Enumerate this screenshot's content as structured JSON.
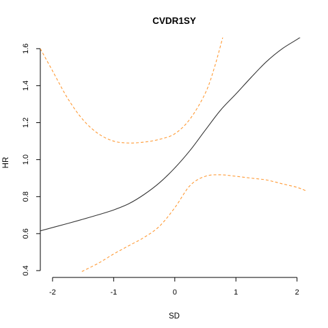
{
  "chart_data": {
    "type": "line",
    "title": "CVDR1SY",
    "xlabel": "SD",
    "ylabel": "HR",
    "xlim": [
      -2.2,
      2.16
    ],
    "ylim": [
      0.4,
      1.66
    ],
    "x_ticks": [
      -2,
      -1,
      0,
      1,
      2
    ],
    "y_ticks": [
      0.4,
      0.6,
      0.8,
      1.0,
      1.2,
      1.4,
      1.6
    ],
    "x_tick_labels": [
      "-2",
      "-1",
      "0",
      "1",
      "2"
    ],
    "y_tick_labels": [
      "0.4",
      "0.6",
      "0.8",
      "1.0",
      "1.2",
      "1.4",
      "1.6"
    ],
    "grid": false,
    "series": [
      {
        "style": "solid",
        "color": "#333333",
        "x": [
          -2.2,
          -1.75,
          -1.5,
          -1.25,
          -1.0,
          -0.75,
          -0.5,
          -0.25,
          0.0,
          0.25,
          0.5,
          0.75,
          1.0,
          1.25,
          1.5,
          1.75,
          2.0,
          2.16
        ],
        "y": [
          0.615,
          0.655,
          0.678,
          0.702,
          0.728,
          0.762,
          0.812,
          0.875,
          0.955,
          1.05,
          1.16,
          1.268,
          1.355,
          1.445,
          1.53,
          1.598,
          1.65,
          1.685
        ]
      },
      {
        "style": "dashed",
        "color": "#ff9933",
        "x": [
          -2.2,
          -2.0,
          -1.75,
          -1.5,
          -1.25,
          -1.0,
          -0.75,
          -0.5,
          -0.25,
          0.0,
          0.25,
          0.5,
          0.65,
          0.8
        ],
        "y": [
          1.6,
          1.48,
          1.33,
          1.215,
          1.14,
          1.1,
          1.09,
          1.095,
          1.11,
          1.14,
          1.22,
          1.36,
          1.5,
          1.68
        ]
      },
      {
        "style": "dashed",
        "color": "#ff9933",
        "x": [
          -1.52,
          -1.25,
          -1.0,
          -0.75,
          -0.5,
          -0.25,
          0.0,
          0.25,
          0.5,
          0.75,
          1.0,
          1.25,
          1.5,
          1.75,
          2.0,
          2.16
        ],
        "y": [
          0.395,
          0.44,
          0.49,
          0.535,
          0.58,
          0.64,
          0.74,
          0.86,
          0.91,
          0.918,
          0.91,
          0.9,
          0.89,
          0.87,
          0.85,
          0.83
        ]
      }
    ]
  }
}
